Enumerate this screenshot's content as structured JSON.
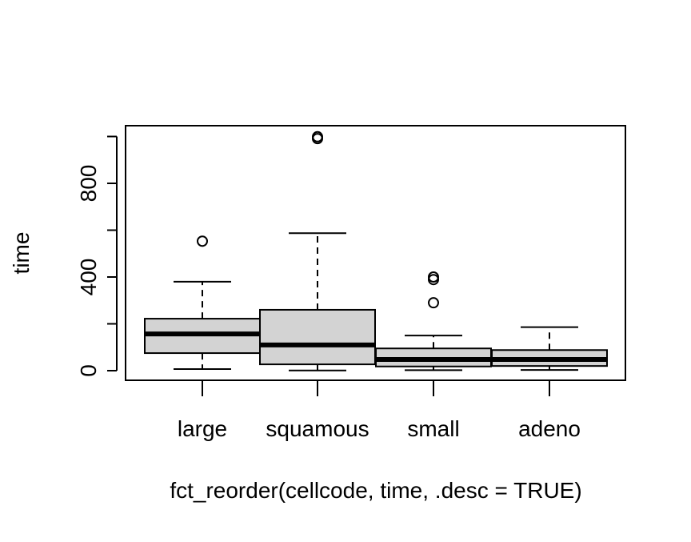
{
  "chart_data": {
    "type": "boxplot",
    "title": "",
    "xlabel": "fct_reorder(cellcode, time, .desc = TRUE)",
    "ylabel": "time",
    "ylim": [
      -40,
      1040
    ],
    "yticks": [
      0,
      200,
      400,
      600,
      800,
      1000
    ],
    "ytick_labels": [
      "0",
      "400",
      "800"
    ],
    "ytick_labeled_values": [
      0,
      400,
      800
    ],
    "grid": false,
    "box_fill": "#d3d3d3",
    "categories": [
      "large",
      "squamous",
      "small",
      "adeno"
    ],
    "boxes": [
      {
        "category": "large",
        "whisker_low": 7,
        "q1": 75,
        "median": 157,
        "q3": 222,
        "whisker_high": 380,
        "outliers": [
          553
        ]
      },
      {
        "category": "squamous",
        "whisker_low": 1,
        "q1": 27,
        "median": 110,
        "q3": 260,
        "whisker_high": 587,
        "outliers": [
          991,
          999
        ]
      },
      {
        "category": "small",
        "whisker_low": 2,
        "q1": 18,
        "median": 48,
        "q3": 95,
        "whisker_high": 150,
        "outliers": [
          290,
          389,
          400
        ]
      },
      {
        "category": "adeno",
        "whisker_low": 3,
        "q1": 20,
        "median": 48,
        "q3": 88,
        "whisker_high": 186,
        "outliers": []
      }
    ]
  }
}
